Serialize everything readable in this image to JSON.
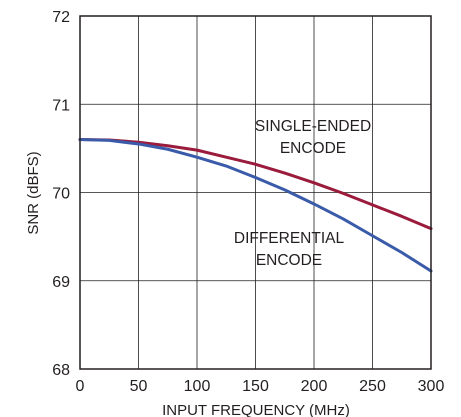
{
  "chart_data": {
    "type": "line",
    "title": "",
    "xlabel": "INPUT FREQUENCY (MHz)",
    "ylabel": "SNR (dBFS)",
    "xlim": [
      0,
      300
    ],
    "ylim": [
      68,
      72
    ],
    "x_ticks": [
      "0",
      "50",
      "100",
      "150",
      "200",
      "250",
      "300"
    ],
    "y_ticks": [
      "68",
      "69",
      "70",
      "71",
      "72"
    ],
    "grid": true,
    "series": [
      {
        "name": "SINGLE-ENDED ENCODE",
        "color": "#9b1b3c",
        "x": [
          0,
          25,
          50,
          75,
          100,
          125,
          150,
          175,
          200,
          225,
          250,
          275,
          300
        ],
        "y": [
          70.6,
          70.595,
          70.57,
          70.53,
          70.48,
          70.4,
          70.32,
          70.22,
          70.11,
          69.99,
          69.86,
          69.73,
          69.59
        ]
      },
      {
        "name": "DIFFERENTIAL ENCODE",
        "color": "#3a5ba9",
        "x": [
          0,
          25,
          50,
          75,
          100,
          125,
          150,
          175,
          200,
          225,
          250,
          275,
          300
        ],
        "y": [
          70.6,
          70.59,
          70.55,
          70.49,
          70.4,
          70.3,
          70.17,
          70.03,
          69.87,
          69.7,
          69.51,
          69.32,
          69.11
        ]
      }
    ],
    "annotations": [
      {
        "lines": [
          "SINGLE-ENDED",
          "ENCODE"
        ]
      },
      {
        "lines": [
          "DIFFERENTIAL",
          "ENCODE"
        ]
      }
    ]
  }
}
